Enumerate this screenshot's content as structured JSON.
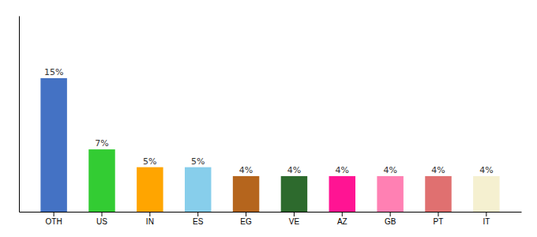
{
  "chart_data": {
    "type": "bar",
    "categories": [
      "OTH",
      "US",
      "IN",
      "ES",
      "EG",
      "VE",
      "AZ",
      "GB",
      "PT",
      "IT"
    ],
    "values": [
      15,
      7,
      5,
      5,
      4,
      4,
      4,
      4,
      4,
      4
    ],
    "value_labels": [
      "15%",
      "7%",
      "5%",
      "5%",
      "4%",
      "4%",
      "4%",
      "4%",
      "4%",
      "4%"
    ],
    "colors": [
      "#4472c4",
      "#33cc33",
      "#ffa500",
      "#87ceeb",
      "#b5651d",
      "#2d6a2d",
      "#ff1493",
      "#ff80b3",
      "#e07070",
      "#f5f0d0"
    ],
    "ylim": [
      0,
      22
    ],
    "data_labels": true,
    "tick_labels": "x"
  }
}
